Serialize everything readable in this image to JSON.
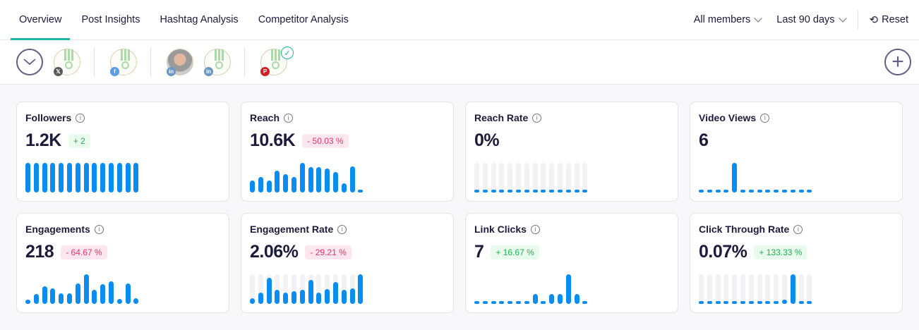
{
  "tabs": [
    {
      "label": "Overview",
      "active": true
    },
    {
      "label": "Post Insights"
    },
    {
      "label": "Hashtag Analysis"
    },
    {
      "label": "Competitor Analysis"
    }
  ],
  "filters": {
    "members": "All members",
    "period": "Last 90 days",
    "reset": "Reset"
  },
  "accounts": [
    {
      "network": "x",
      "color": "#5a5a5a",
      "glyph": "𝕏"
    },
    {
      "network": "facebook",
      "color": "#5b9be8",
      "glyph": "f"
    },
    {
      "network": "linkedin",
      "color": "#6b97c5",
      "glyph": "in",
      "photo": true
    },
    {
      "network": "linkedin",
      "color": "#6b97c5",
      "glyph": "in"
    },
    {
      "network": "pinterest",
      "color": "#d11f26",
      "glyph": "P",
      "selected": true
    }
  ],
  "accent": "#1fb5a6",
  "bar_color": "#0a8cf0",
  "cards": [
    {
      "title": "Followers",
      "value": "1.2K",
      "change": "+ 2",
      "trend": "up",
      "track": false,
      "bars": [
        1,
        1,
        1,
        1,
        1,
        1,
        1,
        1,
        1,
        1,
        1,
        1,
        1,
        1
      ]
    },
    {
      "title": "Reach",
      "value": "10.6K",
      "change": "- 50.03 %",
      "trend": "down",
      "track": false,
      "bars": [
        0.4,
        0.52,
        0.4,
        0.74,
        0.62,
        0.52,
        1,
        0.86,
        0.86,
        0.81,
        0.69,
        0.31,
        0.88,
        0
      ]
    },
    {
      "title": "Reach Rate",
      "value": "0%",
      "change": null,
      "track": true,
      "bars": [
        0,
        0,
        0,
        0,
        0,
        0,
        0,
        0,
        0,
        0,
        0,
        0,
        0,
        0
      ]
    },
    {
      "title": "Video Views",
      "value": "6",
      "change": null,
      "track": false,
      "bars": [
        0,
        0,
        0,
        0,
        6,
        0,
        0,
        0,
        0,
        0,
        0,
        0,
        0,
        0
      ]
    },
    {
      "title": "Engagements",
      "value": "218",
      "change": "- 64.67 %",
      "trend": "down",
      "track": false,
      "bars": [
        0.14,
        0.33,
        0.59,
        0.53,
        0.35,
        0.35,
        0.7,
        1,
        0.48,
        0.66,
        0.77,
        0.17,
        0.7,
        0.2
      ]
    },
    {
      "title": "Engagement Rate",
      "value": "2.06%",
      "change": "- 29.21 %",
      "trend": "down",
      "track": true,
      "bars": [
        0.2,
        0.39,
        0.88,
        0.48,
        0.39,
        0.44,
        0.47,
        0.8,
        0.38,
        0.51,
        0.74,
        0.47,
        0.53,
        1
      ]
    },
    {
      "title": "Link Clicks",
      "value": "7",
      "change": "+ 16.67 %",
      "trend": "up",
      "track": false,
      "bars": [
        0,
        0,
        0,
        0,
        0,
        0,
        0,
        1,
        0,
        1,
        1,
        3,
        1,
        0
      ]
    },
    {
      "title": "Click Through Rate",
      "value": "0.07%",
      "change": "+ 133.33 %",
      "trend": "up",
      "track": true,
      "bars": [
        0,
        0,
        0,
        0,
        0,
        0,
        0,
        0.1,
        0,
        0.1,
        0.15,
        1,
        0.1,
        0
      ]
    }
  ]
}
